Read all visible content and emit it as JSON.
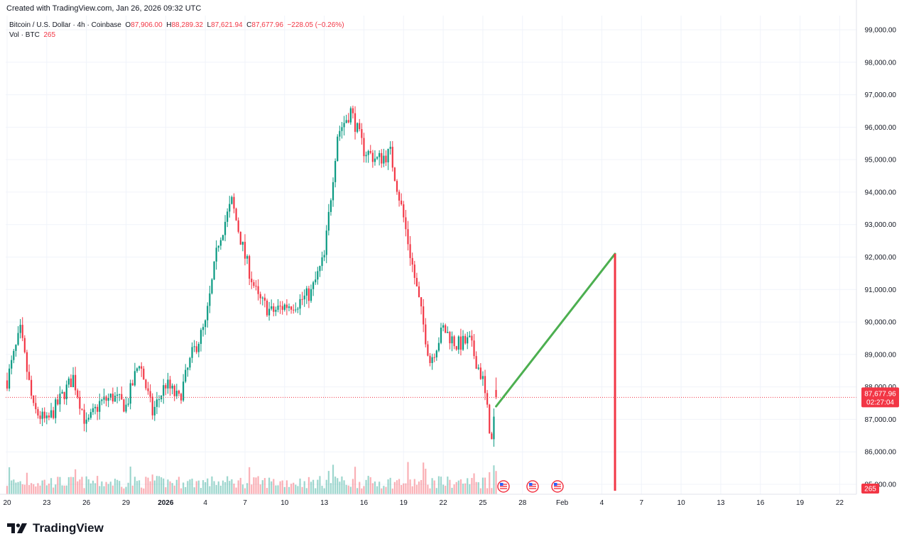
{
  "header": {
    "created": "Created with TradingView.com, Jan 26, 2026 09:32 UTC"
  },
  "legend": {
    "symbol": "Bitcoin / U.S. Dollar · 4h · Coinbase",
    "open_label": "O",
    "open": "87,906.00",
    "high_label": "H",
    "high": "88,289.32",
    "low_label": "L",
    "low": "87,621.94",
    "close_label": "C",
    "close": "87,677.96",
    "change": "−228.05 (−0.26%)",
    "vol_label": "Vol · BTC",
    "vol": "265"
  },
  "price_axis": {
    "ticks": [
      "99,000.00",
      "98,000.00",
      "97,000.00",
      "96,000.00",
      "95,000.00",
      "94,000.00",
      "93,000.00",
      "92,000.00",
      "91,000.00",
      "90,000.00",
      "89,000.00",
      "88,000.00",
      "87,000.00",
      "86,000.00",
      "85,000.00"
    ],
    "current_price": "87,677.96",
    "countdown": "02:27:04",
    "volume_badge": "265"
  },
  "time_axis": {
    "ticks": [
      "20",
      "23",
      "26",
      "29",
      "2026",
      "4",
      "7",
      "10",
      "13",
      "16",
      "19",
      "22",
      "25",
      "28",
      "Feb",
      "4",
      "7",
      "10",
      "13",
      "16",
      "19",
      "22"
    ]
  },
  "colors": {
    "up": "#089981",
    "down": "#f23645",
    "drawing_up": "#4caf50",
    "drawing_vertical": "#f23645",
    "price_line": "#f23645"
  },
  "icons": [
    "us-flag-event-icon",
    "us-flag-event-icon",
    "us-flag-event-icon",
    "tradingview-logo-icon"
  ],
  "logo": {
    "text": "TradingView"
  },
  "chart_data": {
    "type": "candlestick",
    "timeframe": "4h",
    "ylim": [
      85000,
      99000
    ],
    "x_range": [
      "2025-12-20",
      "2026-02-22"
    ],
    "current_price": 87677.96,
    "price_path": [
      [
        "2025-12-20",
        88200
      ],
      [
        "2025-12-21",
        89700
      ],
      [
        "2025-12-22",
        87300
      ],
      [
        "2025-12-23",
        86900
      ],
      [
        "2025-12-24",
        87600
      ],
      [
        "2025-12-25",
        88300
      ],
      [
        "2025-12-26",
        86800
      ],
      [
        "2025-12-27",
        87500
      ],
      [
        "2025-12-28",
        87700
      ],
      [
        "2025-12-29",
        87400
      ],
      [
        "2025-12-30",
        88800
      ],
      [
        "2025-12-31",
        87200
      ],
      [
        "2026-01-01",
        88100
      ],
      [
        "2026-01-02",
        87600
      ],
      [
        "2026-01-03",
        89000
      ],
      [
        "2026-01-04",
        89900
      ],
      [
        "2026-01-05",
        92500
      ],
      [
        "2026-01-06",
        93700
      ],
      [
        "2026-01-07",
        92000
      ],
      [
        "2026-01-08",
        90700
      ],
      [
        "2026-01-09",
        90300
      ],
      [
        "2026-01-10",
        90500
      ],
      [
        "2026-01-11",
        90600
      ],
      [
        "2026-01-12",
        90900
      ],
      [
        "2026-01-13",
        92000
      ],
      [
        "2026-01-14",
        95800
      ],
      [
        "2026-01-15",
        96500
      ],
      [
        "2026-01-16",
        95300
      ],
      [
        "2026-01-17",
        95000
      ],
      [
        "2026-01-18",
        95200
      ],
      [
        "2026-01-19",
        93200
      ],
      [
        "2026-01-20",
        91000
      ],
      [
        "2026-01-21",
        88800
      ],
      [
        "2026-01-22",
        89800
      ],
      [
        "2026-01-23",
        89300
      ],
      [
        "2026-01-24",
        89400
      ],
      [
        "2026-01-25",
        88200
      ],
      [
        "2026-01-25T16:00",
        86300
      ],
      [
        "2026-01-26",
        87678
      ]
    ],
    "drawings": [
      {
        "type": "trend-line",
        "color": "green",
        "from": [
          "2026-01-26",
          87400
        ],
        "to": [
          "2026-02-04",
          92100
        ]
      },
      {
        "type": "vertical-line",
        "color": "red",
        "at": "2026-02-04",
        "from_price": 92100,
        "to_price": 84800
      }
    ]
  }
}
